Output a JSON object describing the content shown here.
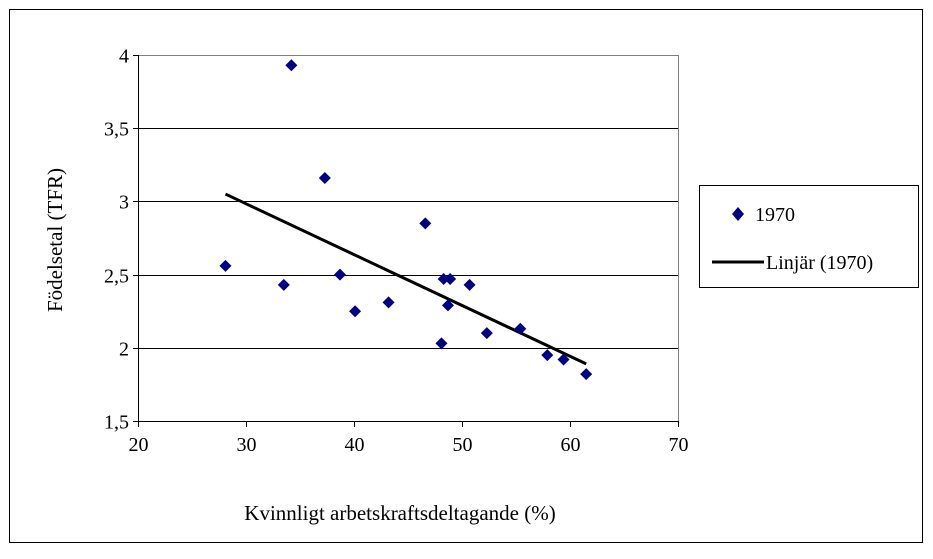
{
  "chart_data": {
    "type": "scatter",
    "xlabel": "Kvinnligt arbetskraftsdeltagande (%)",
    "ylabel": "Födelsetal (TFR)",
    "xlim": [
      20,
      70
    ],
    "ylim": [
      1.5,
      4
    ],
    "x_ticks": [
      20,
      30,
      40,
      50,
      60,
      70
    ],
    "x_tick_labels": [
      "20",
      "30",
      "40",
      "50",
      "60",
      "70"
    ],
    "y_ticks": [
      1.5,
      2,
      2.5,
      3,
      3.5,
      4
    ],
    "y_tick_labels": [
      "1,5",
      "2",
      "2,5",
      "3",
      "3,5",
      "4"
    ],
    "grid": "horizontal",
    "legend_position": "right",
    "colors": {
      "points": "#000080",
      "trendline": "#000000"
    },
    "series": [
      {
        "name": "1970",
        "marker": "diamond",
        "points": [
          {
            "x": 28.1,
            "y": 2.56
          },
          {
            "x": 33.5,
            "y": 2.43
          },
          {
            "x": 34.2,
            "y": 3.93
          },
          {
            "x": 37.3,
            "y": 3.16
          },
          {
            "x": 38.7,
            "y": 2.5
          },
          {
            "x": 40.1,
            "y": 2.25
          },
          {
            "x": 43.2,
            "y": 2.31
          },
          {
            "x": 46.6,
            "y": 2.85
          },
          {
            "x": 48.1,
            "y": 2.03
          },
          {
            "x": 48.3,
            "y": 2.47
          },
          {
            "x": 48.7,
            "y": 2.29
          },
          {
            "x": 48.9,
            "y": 2.47
          },
          {
            "x": 50.7,
            "y": 2.43
          },
          {
            "x": 52.3,
            "y": 2.1
          },
          {
            "x": 55.4,
            "y": 2.13
          },
          {
            "x": 57.9,
            "y": 1.95
          },
          {
            "x": 59.4,
            "y": 1.92
          },
          {
            "x": 61.5,
            "y": 1.82
          }
        ]
      },
      {
        "name": "Linjär (1970)",
        "type": "line",
        "points": [
          {
            "x": 28.1,
            "y": 3.05
          },
          {
            "x": 61.5,
            "y": 1.89
          }
        ]
      }
    ]
  }
}
